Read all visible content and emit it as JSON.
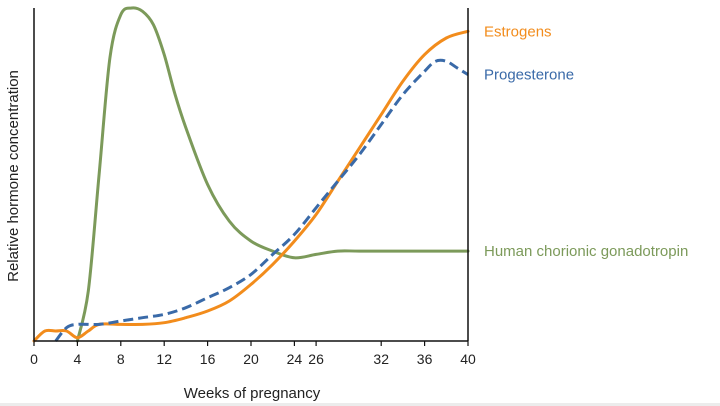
{
  "chart_data": {
    "type": "line",
    "xlabel": "Weeks of pregnancy",
    "ylabel": "Relative hormone concentration",
    "xlim": [
      0,
      40
    ],
    "ylim": [
      0,
      100
    ],
    "x_ticks": [
      0,
      4,
      8,
      12,
      16,
      20,
      24,
      26,
      32,
      36,
      40
    ],
    "x_tick_labels": [
      "0",
      "4",
      "8",
      "12",
      "16",
      "20",
      "24",
      "26",
      "32",
      "36",
      "40"
    ],
    "y_tick_labels": false,
    "grid": false,
    "legend": "labels at right end of lines",
    "series": [
      {
        "name": "Estrogens",
        "color": "#f28c1c",
        "dash": "solid",
        "x": [
          0,
          1,
          2,
          3,
          4,
          5,
          6,
          8,
          10,
          12,
          14,
          16,
          18,
          20,
          22,
          24,
          26,
          28,
          30,
          32,
          34,
          36,
          38,
          40
        ],
        "y": [
          0,
          3,
          3,
          3,
          1,
          3,
          5,
          5,
          5,
          5.5,
          7,
          9,
          12,
          17,
          23,
          30,
          38,
          48,
          58,
          68,
          78,
          86,
          91,
          93
        ]
      },
      {
        "name": "Progesterone",
        "color": "#3a6aa8",
        "dash": "dashed",
        "x": [
          2,
          3,
          4,
          6,
          8,
          10,
          12,
          14,
          16,
          18,
          20,
          22,
          24,
          26,
          28,
          30,
          32,
          34,
          36,
          37,
          38,
          39,
          40
        ],
        "y": [
          0,
          4,
          5,
          5,
          6,
          7,
          8,
          10,
          13,
          16,
          20,
          26,
          32,
          40,
          48,
          56,
          65,
          74,
          81,
          84,
          84,
          82,
          80
        ]
      },
      {
        "name": "Human chorionic gonadotropin",
        "color": "#7c9a5a",
        "dash": "solid",
        "x": [
          4,
          5,
          6,
          7,
          8,
          9,
          10,
          11,
          12,
          13,
          14,
          16,
          18,
          20,
          22,
          24,
          26,
          28,
          30,
          34,
          38,
          40
        ],
        "y": [
          0,
          15,
          50,
          85,
          98,
          100,
          99,
          95,
          86,
          74,
          64,
          47,
          36,
          30,
          27,
          25,
          26,
          27,
          27,
          27,
          27,
          27
        ]
      }
    ]
  }
}
